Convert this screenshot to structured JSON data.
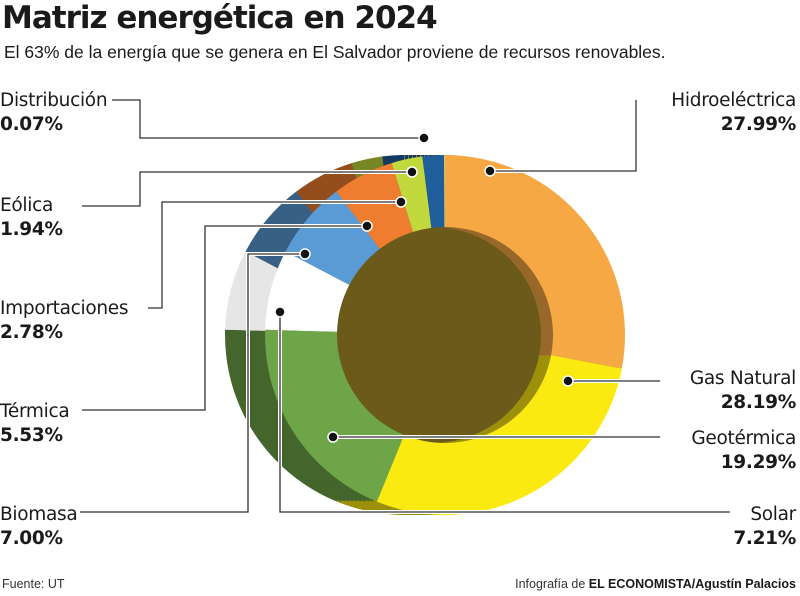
{
  "header": {
    "title": "Matriz energética en 2024",
    "subtitle": "El 63% de la energía que se genera en El Salvador proviene de recursos renovables."
  },
  "footer": {
    "source": "Fuente: UT",
    "credit_prefix": "Infografía de ",
    "credit_bold": "EL ECONOMISTA/Agustín Palacios"
  },
  "colors": {
    "Hidroeléctrica": "#f5a844",
    "Gas Natural": "#fbe912",
    "Geotérmica": "#6ea548",
    "Solar": "#ffffff",
    "Biomasa": "#5b9bd5",
    "Térmica": "#ee7d30",
    "Importaciones": "#c2d93d",
    "Eólica": "#1f5d9b",
    "Distribución": "#f2e56a"
  },
  "chart_data": {
    "type": "pie",
    "style": "3d-donut",
    "title": "Matriz energética en 2024",
    "categories": [
      "Hidroeléctrica",
      "Gas Natural",
      "Geotérmica",
      "Solar",
      "Biomasa",
      "Térmica",
      "Importaciones",
      "Eólica",
      "Distribución"
    ],
    "values": [
      27.99,
      28.19,
      19.29,
      7.21,
      7.0,
      5.53,
      2.78,
      1.94,
      0.07
    ],
    "value_labels": [
      "27.99%",
      "28.19%",
      "19.29%",
      "7.21%",
      "7.00%",
      "5.53%",
      "2.78%",
      "1.94%",
      "0.07%"
    ],
    "legend": "callout labels"
  }
}
